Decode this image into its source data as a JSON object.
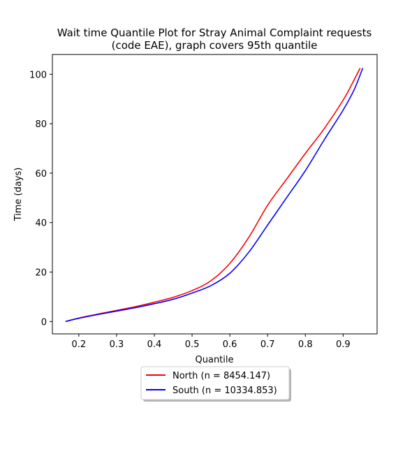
{
  "chart_data": {
    "type": "line",
    "title_lines": [
      "Wait time Quantile Plot for Stray Animal Complaint  requests",
      "(code EAE), graph covers 95th quantile"
    ],
    "xlabel": "Quantile",
    "ylabel": "Time (days)",
    "xlim": [
      0.13,
      0.99
    ],
    "ylim": [
      -5,
      108
    ],
    "xticks": [
      0.2,
      0.3,
      0.4,
      0.5,
      0.6,
      0.7,
      0.8,
      0.9
    ],
    "xtick_labels": [
      "0.2",
      "0.3",
      "0.4",
      "0.5",
      "0.6",
      "0.7",
      "0.8",
      "0.9"
    ],
    "yticks": [
      0,
      20,
      40,
      60,
      80,
      100
    ],
    "ytick_labels": [
      "0",
      "20",
      "40",
      "60",
      "80",
      "100"
    ],
    "grid": false,
    "legend_position": "below",
    "series": [
      {
        "name": "North (n = 8454.147)",
        "color": "#ff0000",
        "points": [
          [
            0.165,
            0
          ],
          [
            0.2,
            1.4
          ],
          [
            0.25,
            3.0
          ],
          [
            0.3,
            4.5
          ],
          [
            0.35,
            6.0
          ],
          [
            0.4,
            7.8
          ],
          [
            0.45,
            9.8
          ],
          [
            0.5,
            12.5
          ],
          [
            0.55,
            16.5
          ],
          [
            0.6,
            23.5
          ],
          [
            0.65,
            34.0
          ],
          [
            0.7,
            47.0
          ],
          [
            0.75,
            57.5
          ],
          [
            0.8,
            68.0
          ],
          [
            0.85,
            78.0
          ],
          [
            0.9,
            89.5
          ],
          [
            0.925,
            96.5
          ],
          [
            0.945,
            102.5
          ]
        ]
      },
      {
        "name": "South (n = 10334.853)",
        "color": "#0000ff",
        "points": [
          [
            0.165,
            0
          ],
          [
            0.2,
            1.3
          ],
          [
            0.25,
            2.8
          ],
          [
            0.3,
            4.2
          ],
          [
            0.35,
            5.6
          ],
          [
            0.4,
            7.2
          ],
          [
            0.45,
            9.0
          ],
          [
            0.5,
            11.5
          ],
          [
            0.55,
            14.5
          ],
          [
            0.6,
            19.5
          ],
          [
            0.65,
            28.0
          ],
          [
            0.7,
            39.0
          ],
          [
            0.75,
            50.0
          ],
          [
            0.8,
            61.0
          ],
          [
            0.85,
            73.5
          ],
          [
            0.9,
            85.5
          ],
          [
            0.93,
            94.0
          ],
          [
            0.952,
            102.5
          ]
        ]
      }
    ]
  }
}
